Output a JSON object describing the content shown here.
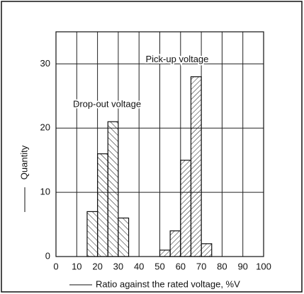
{
  "chart_data": {
    "type": "histogram",
    "x_label": "Ratio against the rated voltage, %V",
    "y_label": "Quantity",
    "series": [
      {
        "name": "Drop-out voltage",
        "bins": [
          15,
          20,
          25,
          30,
          35
        ],
        "values": [
          7,
          16,
          21,
          6
        ]
      },
      {
        "name": "Pick-up voltage",
        "bins": [
          50,
          55,
          60,
          65,
          70,
          75
        ],
        "values": [
          1,
          4,
          15,
          28,
          2
        ]
      }
    ],
    "xlim": [
      0,
      100
    ],
    "xticks": [
      0,
      10,
      20,
      30,
      40,
      50,
      60,
      70,
      80,
      90,
      100
    ],
    "ylim": [
      0,
      35
    ],
    "yticks": [
      0,
      10,
      20,
      30
    ],
    "grid": true,
    "color": "#111111"
  }
}
